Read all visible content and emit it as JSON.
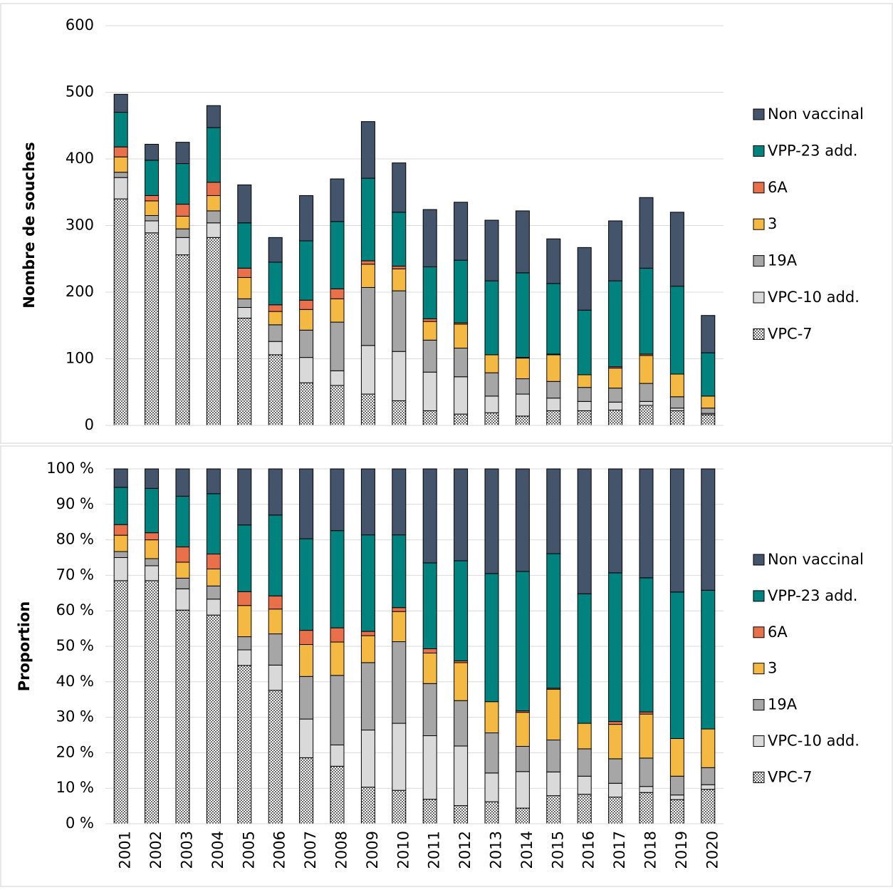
{
  "chart_data": [
    {
      "type": "stacked_bar",
      "y_label": "Nombre de souches",
      "ylim": [
        0,
        600
      ],
      "yticks": [
        0,
        100,
        200,
        300,
        400,
        500,
        600
      ],
      "grid": true,
      "legend": "right",
      "series": [
        {
          "name": "VPC-7",
          "color": "#ffffff",
          "pattern": "dots",
          "values": [
            340,
            289,
            256,
            282,
            161,
            106,
            64,
            60,
            47,
            37,
            22,
            17,
            19,
            14,
            22,
            22,
            23,
            30,
            22,
            16
          ]
        },
        {
          "name": "VPC-10 add.",
          "color": "#d9d9d9",
          "values": [
            32,
            18,
            26,
            22,
            16,
            20,
            38,
            22,
            73,
            74,
            58,
            56,
            25,
            33,
            19,
            14,
            12,
            6,
            4,
            2
          ]
        },
        {
          "name": "19A",
          "color": "#a6a6a6",
          "values": [
            8,
            8,
            13,
            18,
            13,
            25,
            41,
            73,
            87,
            91,
            48,
            43,
            35,
            23,
            25,
            21,
            21,
            27,
            17,
            8
          ]
        },
        {
          "name": "3",
          "color": "#f4b942",
          "values": [
            23,
            22,
            19,
            23,
            32,
            20,
            31,
            35,
            35,
            33,
            28,
            36,
            27,
            31,
            40,
            19,
            30,
            42,
            34,
            18
          ]
        },
        {
          "name": "6A",
          "color": "#e8704a",
          "values": [
            15,
            8,
            18,
            20,
            14,
            10,
            14,
            15,
            5,
            4,
            4,
            2,
            0,
            1,
            1,
            0,
            2,
            2,
            0,
            0
          ]
        },
        {
          "name": "VPP-23 add.",
          "color": "#00827f",
          "values": [
            52,
            53,
            61,
            82,
            68,
            64,
            89,
            101,
            124,
            81,
            78,
            94,
            111,
            127,
            106,
            97,
            129,
            129,
            132,
            65
          ]
        },
        {
          "name": "Non vaccinal",
          "color": "#44546a",
          "values": [
            27,
            24,
            32,
            33,
            57,
            37,
            68,
            64,
            85,
            74,
            86,
            87,
            91,
            93,
            67,
            94,
            90,
            106,
            111,
            56
          ]
        }
      ]
    },
    {
      "type": "stacked_bar",
      "y_label": "Proportion",
      "categories": [
        "2001",
        "2002",
        "2003",
        "2004",
        "2005",
        "2006",
        "2007",
        "2008",
        "2009",
        "2010",
        "2011",
        "2012",
        "2013",
        "2014",
        "2015",
        "2016",
        "2017",
        "2018",
        "2019",
        "2020"
      ],
      "ylim": [
        0,
        100
      ],
      "yticks": [
        {
          "value": 0,
          "label": "0 %"
        },
        {
          "value": 10,
          "label": "10 %"
        },
        {
          "value": 20,
          "label": "20 %"
        },
        {
          "value": 30,
          "label": "30 %"
        },
        {
          "value": 40,
          "label": "40 %"
        },
        {
          "value": 50,
          "label": "50 %"
        },
        {
          "value": 60,
          "label": "60 %"
        },
        {
          "value": 70,
          "label": "70 %"
        },
        {
          "value": 80,
          "label": "80 %"
        },
        {
          "value": 90,
          "label": "90 %"
        },
        {
          "value": 100,
          "label": "100 %"
        }
      ],
      "grid": true,
      "legend": "right",
      "series": [
        {
          "name": "VPC-7",
          "color": "#ffffff",
          "pattern": "dots",
          "values": [
            68.5,
            68.5,
            60.2,
            58.8,
            44.6,
            37.6,
            18.6,
            16.2,
            10.3,
            9.4,
            6.9,
            5.1,
            6.2,
            4.4,
            7.9,
            8.3,
            7.5,
            8.8,
            6.8,
            9.7
          ]
        },
        {
          "name": "VPC-10 add.",
          "color": "#d9d9d9",
          "values": [
            6.5,
            4.2,
            6.0,
            4.5,
            4.4,
            7.1,
            10.9,
            6.0,
            16.1,
            18.9,
            17.9,
            16.8,
            8.1,
            10.3,
            6.7,
            5.1,
            3.9,
            1.7,
            1.3,
            1.3
          ]
        },
        {
          "name": "19A",
          "color": "#a6a6a6",
          "values": [
            1.7,
            2.0,
            3.0,
            3.7,
            3.7,
            8.8,
            12.0,
            19.6,
            19.0,
            23.0,
            14.7,
            12.8,
            11.3,
            7.1,
            9.0,
            7.7,
            6.9,
            8.0,
            5.3,
            4.8
          ]
        },
        {
          "name": "3",
          "color": "#f4b942",
          "values": [
            4.6,
            5.3,
            4.5,
            4.8,
            8.8,
            7.0,
            9.0,
            9.4,
            7.6,
            8.5,
            8.6,
            10.7,
            8.8,
            9.6,
            14.3,
            7.2,
            9.7,
            12.4,
            10.6,
            10.9
          ]
        },
        {
          "name": "6A",
          "color": "#e8704a",
          "values": [
            3.0,
            2.0,
            4.3,
            4.2,
            3.9,
            3.7,
            4.0,
            4.0,
            1.2,
            1.1,
            1.2,
            0.5,
            0,
            0.4,
            0.3,
            0,
            0.8,
            0.6,
            0,
            0
          ]
        },
        {
          "name": "VPP-23 add.",
          "color": "#00827f",
          "values": [
            10.5,
            12.5,
            14.3,
            17.0,
            18.8,
            22.8,
            25.8,
            27.4,
            27.2,
            20.5,
            24.2,
            28.2,
            36.1,
            39.3,
            37.9,
            36.5,
            41.9,
            37.8,
            41.3,
            39.1
          ]
        },
        {
          "name": "Non vaccinal",
          "color": "#44546a",
          "values": [
            5.2,
            5.5,
            7.7,
            7.0,
            15.8,
            13.0,
            19.7,
            17.4,
            18.6,
            18.6,
            26.5,
            25.9,
            29.5,
            28.9,
            23.9,
            35.2,
            29.3,
            30.7,
            34.7,
            34.2
          ]
        }
      ]
    }
  ]
}
